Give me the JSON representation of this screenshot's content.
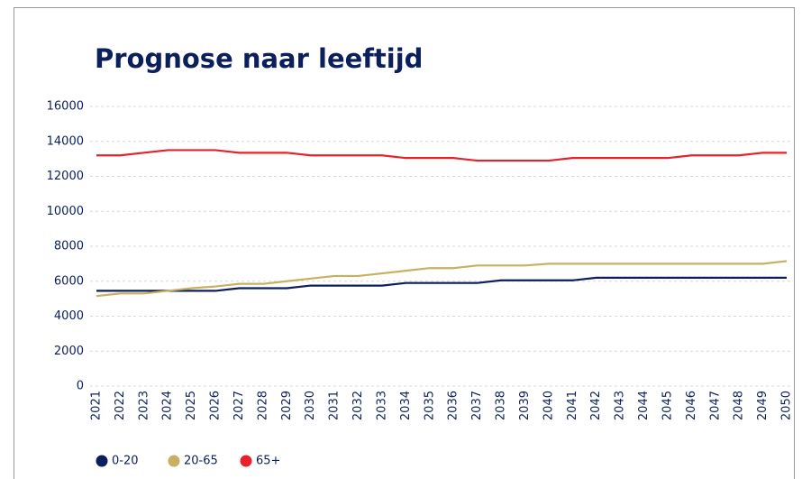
{
  "chart_data": {
    "type": "line",
    "title": "Prognose naar leeftijd",
    "categories": [
      "2021",
      "2022",
      "2023",
      "2024",
      "2025",
      "2026",
      "2027",
      "2028",
      "2029",
      "2030",
      "2031",
      "2032",
      "2033",
      "2034",
      "2035",
      "2036",
      "2037",
      "2038",
      "2039",
      "2040",
      "2041",
      "2042",
      "2043",
      "2044",
      "2045",
      "2046",
      "2047",
      "2048",
      "2049",
      "2050"
    ],
    "series": [
      {
        "name": "0-20",
        "color": "#0b1f5c",
        "values": [
          5450,
          5450,
          5450,
          5450,
          5450,
          5450,
          5600,
          5600,
          5600,
          5750,
          5750,
          5750,
          5750,
          5900,
          5900,
          5900,
          5900,
          6050,
          6050,
          6050,
          6050,
          6200,
          6200,
          6200,
          6200,
          6200,
          6200,
          6200,
          6200,
          6200
        ]
      },
      {
        "name": "20-65",
        "color": "#c8b060",
        "values": [
          5150,
          5300,
          5300,
          5450,
          5600,
          5700,
          5850,
          5850,
          6000,
          6150,
          6300,
          6300,
          6450,
          6600,
          6750,
          6750,
          6900,
          6900,
          6900,
          7000,
          7000,
          7000,
          7000,
          7000,
          7000,
          7000,
          7000,
          7000,
          7000,
          7150
        ]
      },
      {
        "name": "65+",
        "color": "#e8202a",
        "values": [
          13200,
          13200,
          13350,
          13500,
          13500,
          13500,
          13350,
          13350,
          13350,
          13200,
          13200,
          13200,
          13200,
          13050,
          13050,
          13050,
          12900,
          12900,
          12900,
          12900,
          13050,
          13050,
          13050,
          13050,
          13050,
          13200,
          13200,
          13200,
          13350,
          13350
        ]
      }
    ],
    "ylim": [
      0,
      16000
    ],
    "yticks": [
      0,
      2000,
      4000,
      6000,
      8000,
      10000,
      12000,
      14000,
      16000
    ],
    "grid": true
  }
}
